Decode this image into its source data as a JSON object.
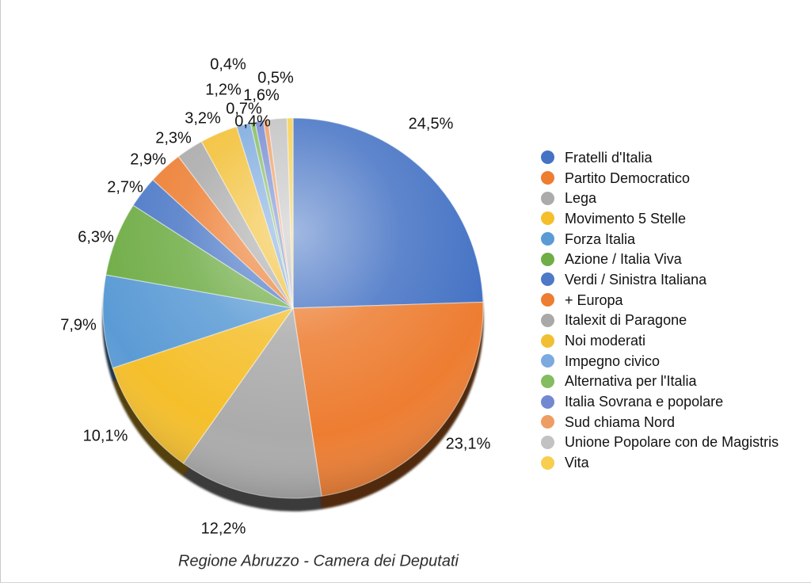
{
  "chart_data": {
    "type": "pie",
    "title": "Regione Abruzzo - Camera dei Deputati",
    "unit": "%",
    "decimal_style": "comma",
    "legend_position": "right",
    "start_angle_deg": 0,
    "direction": "clockwise",
    "style": "3d-glossy",
    "series": [
      {
        "name": "Fratelli d'Italia",
        "value": 24.5,
        "label": "24,5%",
        "color": "#4472C4"
      },
      {
        "name": "Partito Democratico",
        "value": 23.1,
        "label": "23,1%",
        "color": "#ED7D31"
      },
      {
        "name": "Lega",
        "value": 12.2,
        "label": "12,2%",
        "color": "#ABABAB"
      },
      {
        "name": "Movimento 5 Stelle",
        "value": 10.1,
        "label": "10,1%",
        "color": "#F5BF2B"
      },
      {
        "name": "Forza Italia",
        "value": 7.9,
        "label": "7,9%",
        "color": "#5B9BD5"
      },
      {
        "name": "Azione / Italia Viva",
        "value": 6.3,
        "label": "6,3%",
        "color": "#70AD47"
      },
      {
        "name": "Verdi / Sinistra Italiana",
        "value": 2.7,
        "label": "2,7%",
        "color": "#4D79C7"
      },
      {
        "name": "+ Europa",
        "value": 2.9,
        "label": "2,9%",
        "color": "#ED7D31"
      },
      {
        "name": "Italexit di Paragone",
        "value": 2.3,
        "label": "2,3%",
        "color": "#A9A9A9"
      },
      {
        "name": "Noi moderati",
        "value": 3.2,
        "label": "3,2%",
        "color": "#F2BF33"
      },
      {
        "name": "Impegno civico",
        "value": 1.2,
        "label": "1,2%",
        "color": "#7CA9DE"
      },
      {
        "name": "Alternativa per l'Italia",
        "value": 0.4,
        "label": "0,4%",
        "color": "#84BC5F"
      },
      {
        "name": "Italia Sovrana e popolare",
        "value": 0.7,
        "label": "0,7%",
        "color": "#7289D2"
      },
      {
        "name": "Sud chiama Nord",
        "value": 0.4,
        "label": "0,4%",
        "color": "#EE9D63"
      },
      {
        "name": "Unione Popolare con de Magistris",
        "value": 1.6,
        "label": "1,6%",
        "color": "#C2C2C2"
      },
      {
        "name": "Vita",
        "value": 0.5,
        "label": "0,5%",
        "color": "#F7CE4D"
      }
    ]
  }
}
